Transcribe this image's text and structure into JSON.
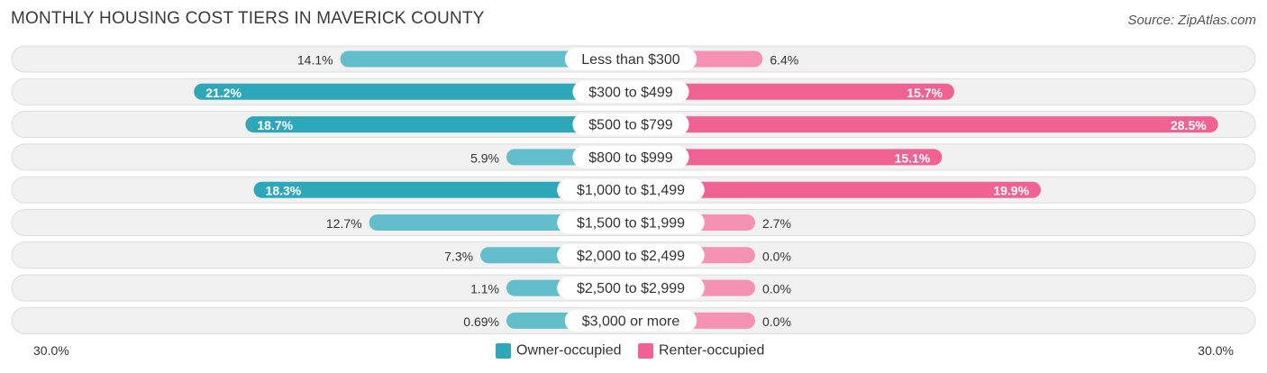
{
  "chart_data": {
    "type": "bar",
    "orientation": "diverging-horizontal",
    "title": "MONTHLY HOUSING COST TIERS IN MAVERICK COUNTY",
    "source": "Source: ZipAtlas.com",
    "categories": [
      "Less than $300",
      "$300 to $499",
      "$500 to $799",
      "$800 to $999",
      "$1,000 to $1,499",
      "$1,500 to $1,999",
      "$2,000 to $2,499",
      "$2,500 to $2,999",
      "$3,000 or more"
    ],
    "series": [
      {
        "name": "Owner-occupied",
        "color": "#2ea8b8",
        "values": [
          14.1,
          21.2,
          18.7,
          5.9,
          18.3,
          12.7,
          7.3,
          1.1,
          0.69
        ],
        "labels": [
          "14.1%",
          "21.2%",
          "18.7%",
          "5.9%",
          "18.3%",
          "12.7%",
          "7.3%",
          "1.1%",
          "0.69%"
        ]
      },
      {
        "name": "Renter-occupied",
        "color": "#f06292",
        "values": [
          6.4,
          15.7,
          28.5,
          15.1,
          19.9,
          2.7,
          0.0,
          0.0,
          0.0
        ],
        "labels": [
          "6.4%",
          "15.7%",
          "28.5%",
          "15.1%",
          "19.9%",
          "2.7%",
          "0.0%",
          "0.0%",
          "0.0%"
        ]
      }
    ],
    "axis": {
      "max": 30.0,
      "left_label": "30.0%",
      "right_label": "30.0%"
    },
    "legend": {
      "position": "bottom-center"
    }
  }
}
